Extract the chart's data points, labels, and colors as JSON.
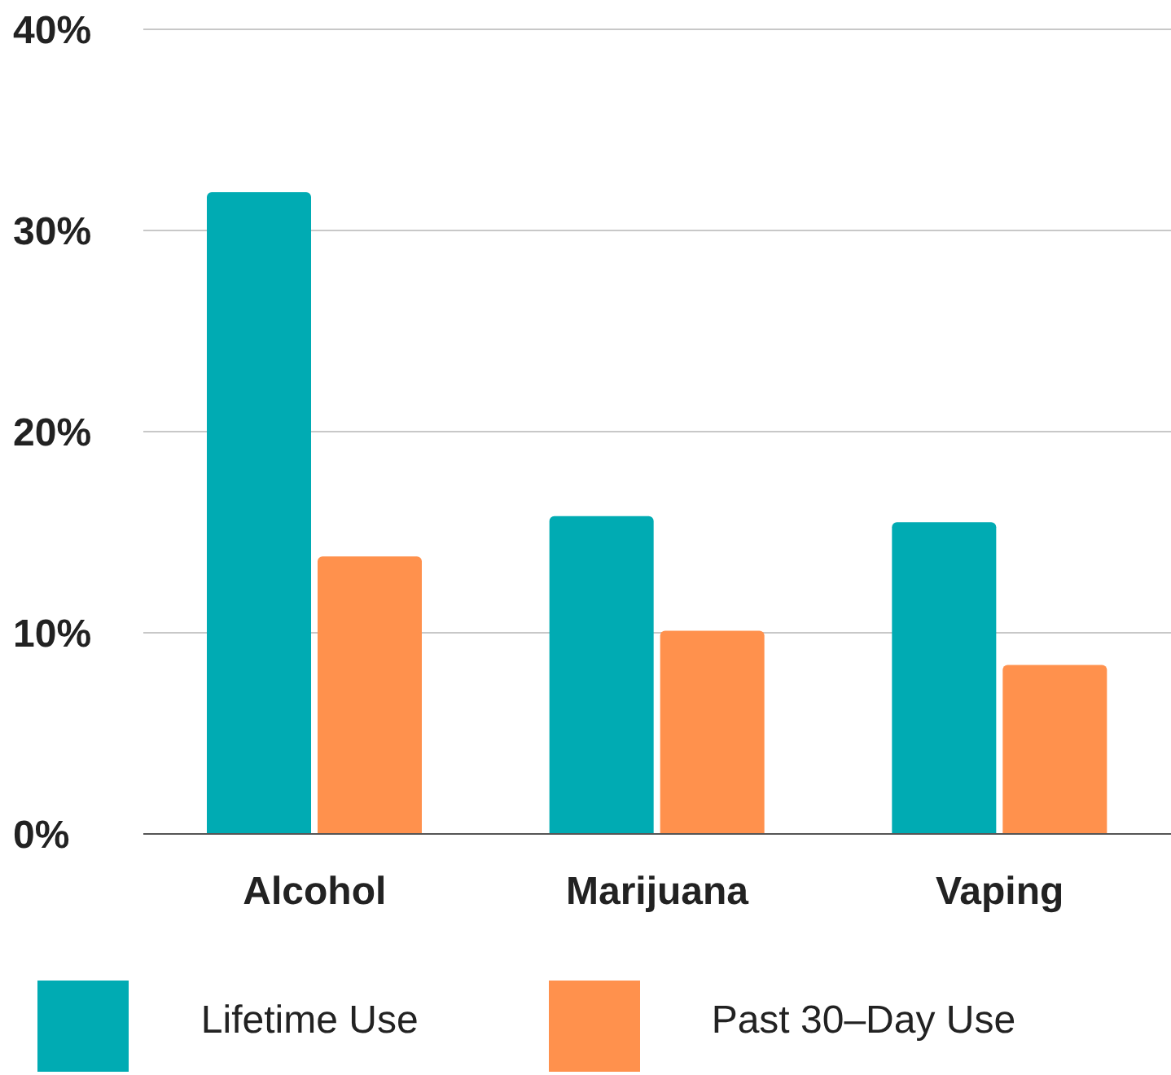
{
  "chart_data": {
    "type": "bar",
    "categories": [
      "Alcohol",
      "Marijuana",
      "Vaping"
    ],
    "series": [
      {
        "name": "Lifetime Use",
        "color": "#00abb3",
        "values": [
          31.9,
          15.8,
          15.5
        ]
      },
      {
        "name": "Past 30–Day Use",
        "color": "#ff914d",
        "values": [
          13.8,
          10.1,
          8.4
        ]
      }
    ],
    "ylim": [
      0,
      40
    ],
    "yticks": [
      {
        "value": 0,
        "label": "0%"
      },
      {
        "value": 10,
        "label": "10%"
      },
      {
        "value": 20,
        "label": "20%"
      },
      {
        "value": 30,
        "label": "30%"
      },
      {
        "value": 40,
        "label": "40%"
      }
    ],
    "grid": "y",
    "legend": "bottom"
  }
}
